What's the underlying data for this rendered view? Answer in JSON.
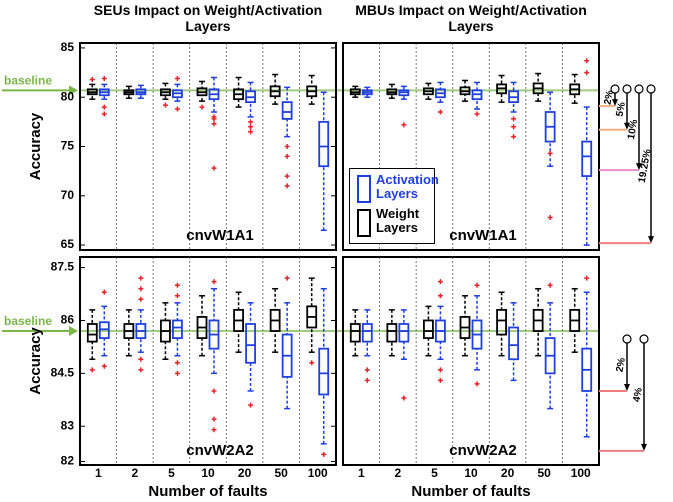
{
  "chart_data": [
    {
      "type": "box",
      "title": "SEUs Impact on Weight/Activation Layers",
      "panel_label": "cnvW1A1",
      "ylabel": "Accuracy",
      "ylim": [
        64.5,
        85.5
      ],
      "yticks": [
        65,
        70,
        75,
        80,
        85
      ],
      "baseline": {
        "label": "baseline",
        "value": 80.7,
        "color": "#7ab648"
      },
      "outlier_color": "#e8232a",
      "series": [
        {
          "color": "#000000",
          "values": [
            {
              "low": 79.8,
              "q1": 80.3,
              "median": 80.5,
              "q3": 80.8,
              "high": 81.3,
              "outliers": [
                81.8
              ]
            },
            {
              "low": 79.9,
              "q1": 80.3,
              "median": 80.5,
              "q3": 80.7,
              "high": 81.1,
              "outliers": []
            },
            {
              "low": 79.8,
              "q1": 80.2,
              "median": 80.5,
              "q3": 80.8,
              "high": 81.4,
              "outliers": [
                79.2
              ]
            },
            {
              "low": 79.6,
              "q1": 80.2,
              "median": 80.5,
              "q3": 80.9,
              "high": 81.6,
              "outliers": [
                79
              ]
            },
            {
              "low": 79,
              "q1": 79.8,
              "median": 80.3,
              "q3": 80.8,
              "high": 82,
              "outliers": []
            },
            {
              "low": 79.3,
              "q1": 80.1,
              "median": 80.6,
              "q3": 81.1,
              "high": 82.3,
              "outliers": []
            },
            {
              "low": 79.3,
              "q1": 80.1,
              "median": 80.6,
              "q3": 81.1,
              "high": 82.2,
              "outliers": []
            }
          ]
        },
        {
          "color": "#1f3fe0",
          "values": [
            {
              "low": 79.8,
              "q1": 80.2,
              "median": 80.5,
              "q3": 80.8,
              "high": 81.3,
              "outliers": [
                78.3,
                79,
                81.9
              ]
            },
            {
              "low": 79.9,
              "q1": 80.3,
              "median": 80.5,
              "q3": 80.8,
              "high": 81.2,
              "outliers": []
            },
            {
              "low": 79.6,
              "q1": 80,
              "median": 80.4,
              "q3": 80.7,
              "high": 81.3,
              "outliers": [
                78.8,
                81.9
              ]
            },
            {
              "low": 78.5,
              "q1": 79.8,
              "median": 80.3,
              "q3": 80.8,
              "high": 82,
              "outliers": [
                72.8,
                77.3,
                77.8,
                78
              ]
            },
            {
              "low": 78,
              "q1": 79.5,
              "median": 80,
              "q3": 80.6,
              "high": 81.5,
              "outliers": [
                76.5,
                77,
                77.5
              ]
            },
            {
              "low": 76,
              "q1": 77.8,
              "median": 78.5,
              "q3": 79.5,
              "high": 81,
              "outliers": [
                71,
                72,
                74,
                75
              ]
            },
            {
              "low": 66.5,
              "q1": 73,
              "median": 75,
              "q3": 77.5,
              "high": 80.5,
              "outliers": []
            }
          ]
        }
      ]
    },
    {
      "type": "box",
      "title": "MBUs Impact on Weight/Activation Layers",
      "panel_label": "cnvW1A1",
      "ylim": [
        64.5,
        85.5
      ],
      "legend": "lower-left",
      "outlier_color": "#e8232a",
      "drops": [
        {
          "label": "2%",
          "level": 79.1,
          "color": "#f4b183"
        },
        {
          "label": "5%",
          "level": 76.7,
          "color": "#f4b183"
        },
        {
          "label": "10%",
          "level": 72.6,
          "color": "#e88fc7"
        },
        {
          "label": "19.25%",
          "level": 65.2,
          "color": "#f08080"
        }
      ],
      "series": [
        {
          "name": "Weight Layers",
          "color": "#000000",
          "values": [
            {
              "low": 80,
              "q1": 80.3,
              "median": 80.5,
              "q3": 80.8,
              "high": 81.1,
              "outliers": []
            },
            {
              "low": 79.9,
              "q1": 80.3,
              "median": 80.5,
              "q3": 80.8,
              "high": 81.3,
              "outliers": []
            },
            {
              "low": 79.8,
              "q1": 80.3,
              "median": 80.6,
              "q3": 80.9,
              "high": 81.4,
              "outliers": []
            },
            {
              "low": 79.6,
              "q1": 80.3,
              "median": 80.6,
              "q3": 81,
              "high": 81.7,
              "outliers": []
            },
            {
              "low": 79.5,
              "q1": 80.4,
              "median": 80.9,
              "q3": 81.3,
              "high": 82.2,
              "outliers": []
            },
            {
              "low": 79.6,
              "q1": 80.4,
              "median": 80.9,
              "q3": 81.4,
              "high": 82.4,
              "outliers": []
            },
            {
              "low": 79.4,
              "q1": 80.3,
              "median": 80.8,
              "q3": 81.3,
              "high": 82.3,
              "outliers": []
            }
          ]
        },
        {
          "name": "Activation Layers",
          "color": "#1f3fe0",
          "values": [
            {
              "low": 80,
              "q1": 80.3,
              "median": 80.5,
              "q3": 80.7,
              "high": 81,
              "outliers": []
            },
            {
              "low": 79.8,
              "q1": 80.2,
              "median": 80.5,
              "q3": 80.7,
              "high": 81.1,
              "outliers": [
                77.2
              ]
            },
            {
              "low": 79.5,
              "q1": 80,
              "median": 80.4,
              "q3": 80.8,
              "high": 81.5,
              "outliers": [
                78.5
              ]
            },
            {
              "low": 78.8,
              "q1": 79.8,
              "median": 80.3,
              "q3": 80.7,
              "high": 81.5,
              "outliers": [
                78.3
              ]
            },
            {
              "low": 78.5,
              "q1": 79.5,
              "median": 80,
              "q3": 80.6,
              "high": 81.5,
              "outliers": [
                76,
                77,
                77.8
              ]
            },
            {
              "low": 73,
              "q1": 75.5,
              "median": 77,
              "q3": 78.5,
              "high": 80.5,
              "outliers": [
                74.3,
                67.8
              ]
            },
            {
              "low": 65,
              "q1": 72,
              "median": 74,
              "q3": 75.5,
              "high": 79,
              "outliers": [
                82.5,
                83.7
              ]
            }
          ]
        }
      ]
    },
    {
      "type": "box",
      "panel_label": "cnvW2A2",
      "ylabel": "Accuracy",
      "xlabel": "Number of faults",
      "categories": [
        "1",
        "2",
        "5",
        "10",
        "20",
        "50",
        "100"
      ],
      "ylim": [
        81.9,
        87.8
      ],
      "yticks": [
        82,
        83,
        84.5,
        86,
        87.5
      ],
      "baseline": {
        "label": "baseline",
        "value": 85.7,
        "color": "#7ab648"
      },
      "outlier_color": "#e8232a",
      "series": [
        {
          "color": "#000000",
          "values": [
            {
              "low": 84.9,
              "q1": 85.4,
              "median": 85.6,
              "q3": 85.9,
              "high": 86.3,
              "outliers": [
                84.6
              ]
            },
            {
              "low": 85,
              "q1": 85.5,
              "median": 85.7,
              "q3": 85.9,
              "high": 86.3,
              "outliers": []
            },
            {
              "low": 84.9,
              "q1": 85.4,
              "median": 85.7,
              "q3": 86,
              "high": 86.5,
              "outliers": []
            },
            {
              "low": 85,
              "q1": 85.5,
              "median": 85.8,
              "q3": 86.1,
              "high": 86.7,
              "outliers": []
            },
            {
              "low": 85.1,
              "q1": 85.7,
              "median": 86,
              "q3": 86.3,
              "high": 86.8,
              "outliers": []
            },
            {
              "low": 85.1,
              "q1": 85.7,
              "median": 86,
              "q3": 86.3,
              "high": 86.9,
              "outliers": []
            },
            {
              "low": 85.1,
              "q1": 85.8,
              "median": 86.1,
              "q3": 86.4,
              "high": 87.2,
              "outliers": [
                84.8
              ]
            }
          ]
        },
        {
          "color": "#1f3fe0",
          "values": [
            {
              "low": 85,
              "q1": 85.5,
              "median": 85.75,
              "q3": 85.95,
              "high": 86.4,
              "outliers": [
                86.8,
                84.7
              ]
            },
            {
              "low": 85.1,
              "q1": 85.5,
              "median": 85.7,
              "q3": 85.9,
              "high": 86.3,
              "outliers": [
                84.6,
                84.9,
                86.6,
                86.9,
                87.2
              ]
            },
            {
              "low": 85,
              "q1": 85.5,
              "median": 85.8,
              "q3": 86,
              "high": 86.5,
              "outliers": [
                84.5,
                84.8,
                86.7,
                87
              ]
            },
            {
              "low": 84.5,
              "q1": 85.2,
              "median": 85.6,
              "q3": 86,
              "high": 86.9,
              "outliers": [
                82.9,
                83.2,
                84,
                87.1
              ]
            },
            {
              "low": 84,
              "q1": 84.8,
              "median": 85.3,
              "q3": 85.9,
              "high": 86.5,
              "outliers": [
                83.6
              ]
            },
            {
              "low": 83.5,
              "q1": 84.4,
              "median": 85,
              "q3": 85.6,
              "high": 86.5,
              "outliers": [
                87.2
              ]
            },
            {
              "low": 82.5,
              "q1": 83.9,
              "median": 84.5,
              "q3": 85.2,
              "high": 86.9,
              "outliers": [
                82.2
              ]
            }
          ]
        }
      ]
    },
    {
      "type": "box",
      "panel_label": "cnvW2A2",
      "xlabel": "Number of faults",
      "categories": [
        "1",
        "2",
        "5",
        "10",
        "20",
        "50",
        "100"
      ],
      "ylim": [
        81.9,
        87.8
      ],
      "outlier_color": "#e8232a",
      "drops": [
        {
          "label": "2%",
          "level": 84,
          "color": "#f08080"
        },
        {
          "label": "4%",
          "level": 82.3,
          "color": "#f08080"
        }
      ],
      "series": [
        {
          "color": "#000000",
          "values": [
            {
              "low": 85,
              "q1": 85.4,
              "median": 85.7,
              "q3": 85.9,
              "high": 86.3,
              "outliers": []
            },
            {
              "low": 85,
              "q1": 85.4,
              "median": 85.7,
              "q3": 85.9,
              "high": 86.3,
              "outliers": []
            },
            {
              "low": 85,
              "q1": 85.5,
              "median": 85.7,
              "q3": 86,
              "high": 86.4,
              "outliers": []
            },
            {
              "low": 85,
              "q1": 85.5,
              "median": 85.8,
              "q3": 86.1,
              "high": 86.7,
              "outliers": []
            },
            {
              "low": 85,
              "q1": 85.6,
              "median": 86,
              "q3": 86.3,
              "high": 86.8,
              "outliers": []
            },
            {
              "low": 85,
              "q1": 85.7,
              "median": 86,
              "q3": 86.3,
              "high": 86.9,
              "outliers": []
            },
            {
              "low": 85.1,
              "q1": 85.7,
              "median": 86,
              "q3": 86.3,
              "high": 86.9,
              "outliers": []
            }
          ]
        },
        {
          "color": "#1f3fe0",
          "values": [
            {
              "low": 85,
              "q1": 85.4,
              "median": 85.7,
              "q3": 85.9,
              "high": 86.3,
              "outliers": [
                84.3,
                84.6
              ]
            },
            {
              "low": 84.9,
              "q1": 85.4,
              "median": 85.7,
              "q3": 85.9,
              "high": 86.3,
              "outliers": [
                83.8
              ]
            },
            {
              "low": 84.9,
              "q1": 85.4,
              "median": 85.7,
              "q3": 86,
              "high": 86.4,
              "outliers": [
                84.3,
                84.6,
                86.7,
                87.1
              ]
            },
            {
              "low": 84.6,
              "q1": 85.2,
              "median": 85.6,
              "q3": 86,
              "high": 86.7,
              "outliers": [
                84.2,
                87
              ]
            },
            {
              "low": 84.3,
              "q1": 84.9,
              "median": 85.3,
              "q3": 85.8,
              "high": 86.5,
              "outliers": []
            },
            {
              "low": 83.5,
              "q1": 84.5,
              "median": 85,
              "q3": 85.5,
              "high": 86.5,
              "outliers": [
                87
              ]
            },
            {
              "low": 82.7,
              "q1": 84,
              "median": 84.6,
              "q3": 85.2,
              "high": 86.8,
              "outliers": [
                87.2
              ]
            }
          ]
        }
      ]
    }
  ]
}
